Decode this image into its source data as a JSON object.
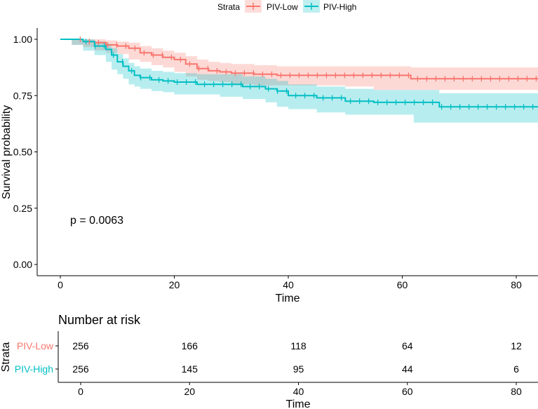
{
  "legend": {
    "title": "Strata",
    "items": [
      {
        "label": "PIV-Low",
        "color": "#F8766D"
      },
      {
        "label": "PIV-High",
        "color": "#00BFC4"
      }
    ]
  },
  "chart_data": [
    {
      "type": "line",
      "subtype": "kaplan-meier",
      "xlabel": "Time",
      "ylabel": "Survival probability",
      "xlim": [
        0,
        84
      ],
      "ylim": [
        0,
        1
      ],
      "x_ticks": [
        "0",
        "20",
        "40",
        "60",
        "80"
      ],
      "y_ticks": [
        "0.00",
        "0.25",
        "0.50",
        "0.75",
        "1.00"
      ],
      "annotation": "p = 0.0063",
      "grid": false,
      "legend_position": "top",
      "series": [
        {
          "name": "PIV-Low",
          "color": "#F8766D",
          "x": [
            0,
            2,
            4,
            6,
            8,
            10,
            12,
            14,
            16,
            18,
            20,
            22,
            24,
            26,
            28,
            30,
            34,
            38,
            44,
            50,
            55,
            61.5,
            70,
            84
          ],
          "y": [
            1.0,
            1.0,
            0.99,
            0.985,
            0.975,
            0.97,
            0.96,
            0.94,
            0.93,
            0.92,
            0.91,
            0.89,
            0.87,
            0.86,
            0.855,
            0.85,
            0.845,
            0.84,
            0.84,
            0.84,
            0.84,
            0.825,
            0.825,
            0.825
          ],
          "upper": [
            1.0,
            1.0,
            1.0,
            1.0,
            0.995,
            0.99,
            0.985,
            0.97,
            0.96,
            0.95,
            0.94,
            0.925,
            0.91,
            0.9,
            0.895,
            0.89,
            0.885,
            0.88,
            0.88,
            0.88,
            0.88,
            0.875,
            0.875,
            0.88
          ],
          "lower": [
            1.0,
            1.0,
            0.975,
            0.965,
            0.95,
            0.94,
            0.935,
            0.91,
            0.9,
            0.885,
            0.875,
            0.855,
            0.835,
            0.82,
            0.815,
            0.81,
            0.8,
            0.795,
            0.795,
            0.795,
            0.79,
            0.775,
            0.775,
            0.775
          ]
        },
        {
          "name": "PIV-High",
          "color": "#00BFC4",
          "x": [
            0,
            2,
            4,
            6,
            8,
            9,
            10,
            11,
            12,
            13,
            14,
            16,
            18,
            20,
            24,
            28,
            32,
            36,
            38,
            40,
            45,
            50,
            55,
            62,
            66.5,
            70,
            84
          ],
          "y": [
            1.0,
            1.0,
            0.99,
            0.97,
            0.955,
            0.93,
            0.9,
            0.88,
            0.86,
            0.84,
            0.83,
            0.82,
            0.815,
            0.81,
            0.8,
            0.8,
            0.79,
            0.78,
            0.77,
            0.75,
            0.74,
            0.725,
            0.72,
            0.72,
            0.7,
            0.7,
            0.7
          ],
          "upper": [
            1.0,
            1.0,
            1.0,
            0.99,
            0.98,
            0.96,
            0.935,
            0.915,
            0.895,
            0.88,
            0.87,
            0.86,
            0.855,
            0.85,
            0.845,
            0.845,
            0.835,
            0.825,
            0.815,
            0.8,
            0.79,
            0.78,
            0.775,
            0.775,
            0.76,
            0.76,
            0.76
          ],
          "lower": [
            1.0,
            1.0,
            0.975,
            0.95,
            0.93,
            0.9,
            0.865,
            0.845,
            0.825,
            0.8,
            0.79,
            0.78,
            0.77,
            0.765,
            0.755,
            0.755,
            0.745,
            0.735,
            0.72,
            0.7,
            0.69,
            0.675,
            0.665,
            0.665,
            0.63,
            0.63,
            0.63
          ]
        }
      ]
    },
    {
      "type": "table",
      "title": "Number at risk",
      "ylabel": "Strata",
      "xlabel": "Time",
      "x_ticks": [
        "0",
        "20",
        "40",
        "60",
        "80"
      ],
      "times": [
        0,
        20,
        40,
        60,
        80
      ],
      "rows": [
        {
          "name": "PIV-Low",
          "color": "#F8766D",
          "values": [
            "256",
            "166",
            "118",
            "64",
            "12"
          ]
        },
        {
          "name": "PIV-High",
          "color": "#00BFC4",
          "values": [
            "256",
            "145",
            "95",
            "44",
            "6"
          ]
        }
      ]
    }
  ]
}
